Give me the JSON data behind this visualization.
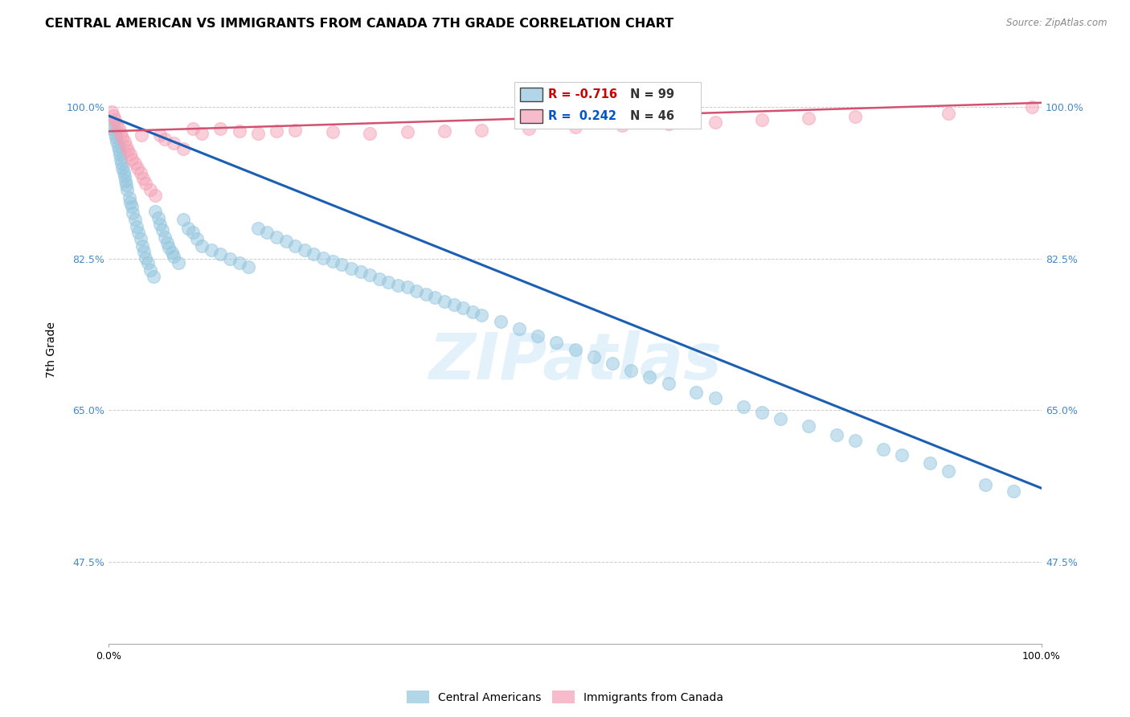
{
  "title": "CENTRAL AMERICAN VS IMMIGRANTS FROM CANADA 7TH GRADE CORRELATION CHART",
  "source": "Source: ZipAtlas.com",
  "ylabel": "7th Grade",
  "xlim": [
    0.0,
    1.0
  ],
  "ylim": [
    0.38,
    1.06
  ],
  "x_tick_labels": [
    "0.0%",
    "100.0%"
  ],
  "y_tick_labels": [
    "47.5%",
    "65.0%",
    "82.5%",
    "100.0%"
  ],
  "y_tick_positions": [
    0.475,
    0.65,
    0.825,
    1.0
  ],
  "watermark": "ZIPatlas",
  "legend_label_blue": "Central Americans",
  "legend_label_pink": "Immigrants from Canada",
  "legend_r_blue": "R = -0.716",
  "legend_n_blue": "N = 99",
  "legend_r_pink": "R =  0.242",
  "legend_n_pink": "N = 46",
  "blue_color": "#92c5de",
  "pink_color": "#f4a0b5",
  "blue_line_color": "#1a5fb4",
  "pink_line_color": "#d45070",
  "blue_line_x": [
    0.0,
    1.0
  ],
  "blue_line_y": [
    0.99,
    0.56
  ],
  "pink_line_x": [
    0.0,
    1.0
  ],
  "pink_line_y": [
    0.972,
    1.005
  ],
  "grid_color": "#cccccc",
  "background_color": "#ffffff",
  "title_fontsize": 11.5,
  "axis_label_fontsize": 10,
  "tick_fontsize": 9,
  "blue_scatter_x": [
    0.003,
    0.005,
    0.007,
    0.008,
    0.009,
    0.01,
    0.011,
    0.012,
    0.013,
    0.014,
    0.015,
    0.016,
    0.017,
    0.018,
    0.019,
    0.02,
    0.022,
    0.023,
    0.025,
    0.026,
    0.028,
    0.03,
    0.032,
    0.034,
    0.036,
    0.038,
    0.04,
    0.042,
    0.045,
    0.048,
    0.05,
    0.053,
    0.055,
    0.058,
    0.06,
    0.063,
    0.065,
    0.068,
    0.07,
    0.075,
    0.08,
    0.085,
    0.09,
    0.095,
    0.1,
    0.11,
    0.12,
    0.13,
    0.14,
    0.15,
    0.16,
    0.17,
    0.18,
    0.19,
    0.2,
    0.21,
    0.22,
    0.23,
    0.24,
    0.25,
    0.26,
    0.27,
    0.28,
    0.29,
    0.3,
    0.31,
    0.32,
    0.33,
    0.34,
    0.35,
    0.36,
    0.37,
    0.38,
    0.39,
    0.4,
    0.42,
    0.44,
    0.46,
    0.48,
    0.5,
    0.52,
    0.54,
    0.56,
    0.58,
    0.6,
    0.63,
    0.65,
    0.68,
    0.7,
    0.72,
    0.75,
    0.78,
    0.8,
    0.83,
    0.85,
    0.88,
    0.9,
    0.94,
    0.97
  ],
  "blue_scatter_y": [
    0.975,
    0.98,
    0.97,
    0.965,
    0.96,
    0.955,
    0.95,
    0.945,
    0.94,
    0.935,
    0.93,
    0.925,
    0.92,
    0.915,
    0.91,
    0.905,
    0.895,
    0.89,
    0.885,
    0.878,
    0.87,
    0.862,
    0.855,
    0.848,
    0.84,
    0.833,
    0.826,
    0.82,
    0.812,
    0.804,
    0.88,
    0.872,
    0.865,
    0.858,
    0.85,
    0.843,
    0.838,
    0.832,
    0.828,
    0.82,
    0.87,
    0.86,
    0.855,
    0.848,
    0.84,
    0.835,
    0.83,
    0.825,
    0.82,
    0.816,
    0.86,
    0.855,
    0.85,
    0.845,
    0.84,
    0.835,
    0.83,
    0.826,
    0.822,
    0.818,
    0.814,
    0.81,
    0.806,
    0.802,
    0.798,
    0.794,
    0.792,
    0.788,
    0.784,
    0.78,
    0.776,
    0.772,
    0.768,
    0.764,
    0.76,
    0.752,
    0.744,
    0.736,
    0.728,
    0.72,
    0.712,
    0.704,
    0.696,
    0.688,
    0.681,
    0.671,
    0.664,
    0.654,
    0.648,
    0.64,
    0.632,
    0.622,
    0.615,
    0.605,
    0.598,
    0.589,
    0.58,
    0.564,
    0.557
  ],
  "pink_scatter_x": [
    0.003,
    0.005,
    0.007,
    0.009,
    0.011,
    0.013,
    0.015,
    0.017,
    0.019,
    0.021,
    0.023,
    0.025,
    0.028,
    0.031,
    0.034,
    0.037,
    0.04,
    0.045,
    0.05,
    0.055,
    0.06,
    0.07,
    0.08,
    0.09,
    0.1,
    0.12,
    0.14,
    0.16,
    0.18,
    0.2,
    0.24,
    0.28,
    0.32,
    0.36,
    0.4,
    0.45,
    0.5,
    0.55,
    0.6,
    0.65,
    0.7,
    0.75,
    0.8,
    0.9,
    0.99,
    0.035
  ],
  "pink_scatter_y": [
    0.995,
    0.99,
    0.985,
    0.98,
    0.975,
    0.97,
    0.965,
    0.96,
    0.955,
    0.95,
    0.945,
    0.94,
    0.935,
    0.93,
    0.924,
    0.918,
    0.912,
    0.905,
    0.898,
    0.968,
    0.963,
    0.958,
    0.952,
    0.975,
    0.97,
    0.975,
    0.972,
    0.97,
    0.972,
    0.973,
    0.971,
    0.97,
    0.971,
    0.972,
    0.973,
    0.975,
    0.977,
    0.979,
    0.981,
    0.983,
    0.985,
    0.987,
    0.989,
    0.993,
    1.0,
    0.968
  ]
}
